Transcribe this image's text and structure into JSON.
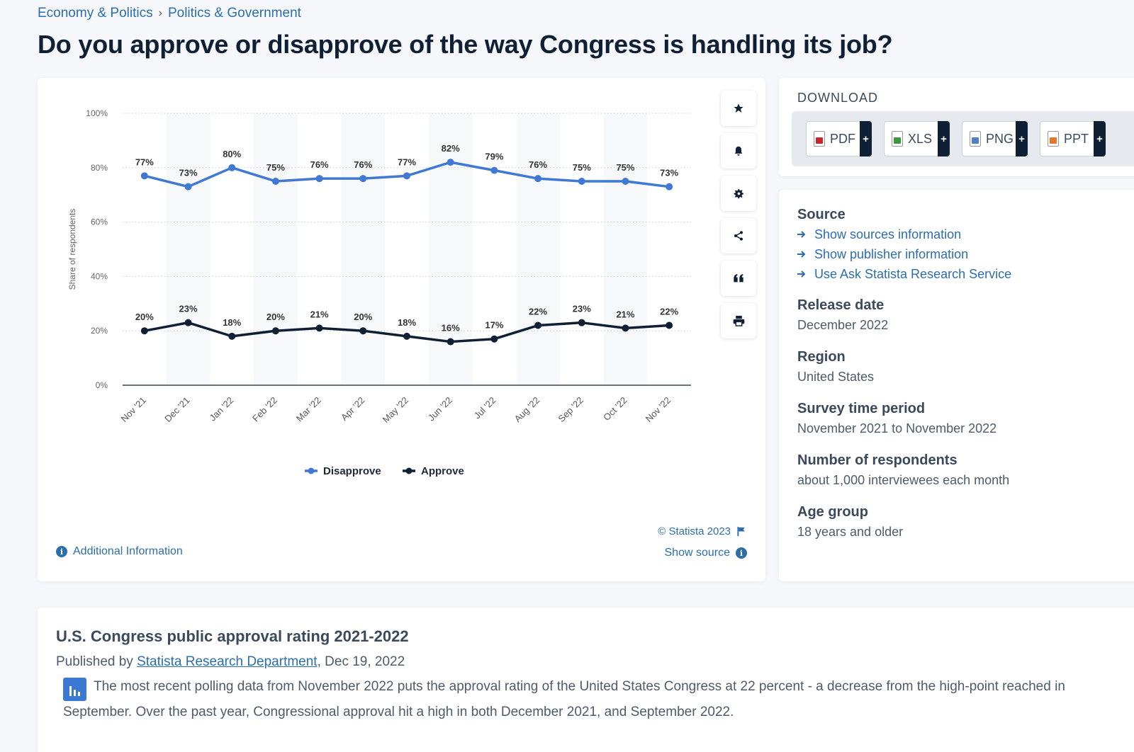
{
  "breadcrumb": {
    "items": [
      "Economy & Politics",
      "Politics & Government"
    ],
    "separator": "›"
  },
  "page_title": "Do you approve or disapprove of the way Congress is handling its job?",
  "toolbar": {
    "icons": [
      "star-icon",
      "bell-icon",
      "gear-icon",
      "share-icon",
      "quote-icon",
      "print-icon"
    ]
  },
  "chart_footer": {
    "additional_info": "Additional Information",
    "copyright": "© Statista 2023",
    "show_source": "Show source",
    "info_glyph": "i"
  },
  "chart_data": {
    "type": "line",
    "categories": [
      "Nov '21",
      "Dec '21",
      "Jan '22",
      "Feb '22",
      "Mar '22",
      "Apr '22",
      "May '22",
      "Jun '22",
      "Jul '22",
      "Aug '22",
      "Sep '22",
      "Oct '22",
      "Nov '22"
    ],
    "series": [
      {
        "name": "Disapprove",
        "color": "#4078d4",
        "values": [
          77,
          73,
          80,
          75,
          76,
          76,
          77,
          82,
          79,
          76,
          75,
          75,
          73
        ]
      },
      {
        "name": "Approve",
        "color": "#0f1f34",
        "values": [
          20,
          23,
          18,
          20,
          21,
          20,
          18,
          16,
          17,
          22,
          23,
          21,
          22
        ]
      }
    ],
    "ylabel": "Share of respondents",
    "yticks": [
      0,
      20,
      40,
      60,
      80,
      100
    ],
    "ytick_suffix": "%",
    "ylim": [
      0,
      100
    ],
    "grid": true,
    "legend_position": "bottom-center"
  },
  "download": {
    "title": "DOWNLOAD",
    "buttons": [
      {
        "label": "PDF",
        "color": "#c6282f"
      },
      {
        "label": "XLS",
        "color": "#3c9a3c"
      },
      {
        "label": "PNG",
        "color": "#4f7fc2"
      },
      {
        "label": "PPT",
        "color": "#e5782c"
      }
    ],
    "plus": "+"
  },
  "info": {
    "source_label": "Source",
    "source_links": [
      "Show sources information",
      "Show publisher information",
      "Use Ask Statista Research Service"
    ],
    "release_label": "Release date",
    "release_value": "December 2022",
    "region_label": "Region",
    "region_value": "United States",
    "survey_label": "Survey time period",
    "survey_value": "November 2021 to November 2022",
    "respondents_label": "Number of respondents",
    "respondents_value": "about 1,000 interviewees each month",
    "age_label": "Age group",
    "age_value": "18 years and older"
  },
  "description": {
    "title": "U.S. Congress public approval rating 2021-2022",
    "published_prefix": "Published by ",
    "publisher": "Statista Research Department",
    "published_suffix": ", Dec 19, 2022",
    "text": "The most recent polling data from November 2022 puts the approval rating of the United States Congress at 22 percent - a decrease from the high-point reached in September. Over the past year, Congressional approval hit a high in both December 2021, and September 2022."
  }
}
